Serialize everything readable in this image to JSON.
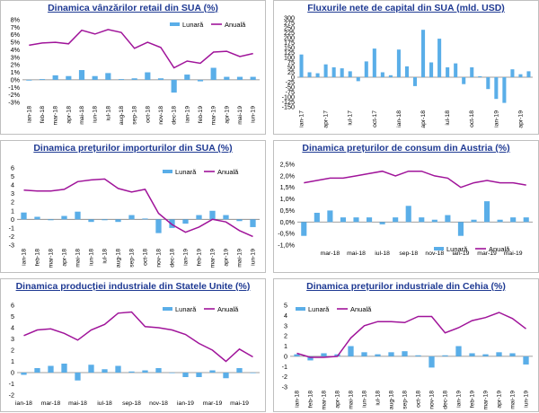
{
  "legend": {
    "monthly": "Lunară",
    "annual": "Anuală"
  },
  "colors": {
    "bar": "#5aaee8",
    "line": "#a0149a",
    "title": "#1f3a93"
  },
  "chart_data": [
    {
      "type": "bar",
      "title": "Dinamica vânzărilor retail din SUA (%)",
      "categories": [
        "ian-18",
        "feb-18",
        "mar-18",
        "apr-18",
        "mai-18",
        "iun-18",
        "iul-18",
        "aug-18",
        "sep-18",
        "oct-18",
        "nov-18",
        "dec-18",
        "ian-19",
        "feb-19",
        "mar-19",
        "apr-19",
        "mai-19",
        "iun-19"
      ],
      "tick_labels": [
        "ian-18",
        "feb-18",
        "mar-18",
        "apr-18",
        "mai-18",
        "iun-18",
        "iul-18",
        "aug-18",
        "sep-18",
        "oct-18",
        "nov-18",
        "dec-18",
        "ian-19",
        "feb-19",
        "mar-19",
        "apr-19",
        "mai-19",
        "iun-19"
      ],
      "ylim": [
        -3,
        8
      ],
      "yticks": [
        "-3%",
        "-2%",
        "-1%",
        "0%",
        "1%",
        "2%",
        "3%",
        "4%",
        "5%",
        "6%",
        "7%",
        "8%"
      ],
      "series": [
        {
          "name": "Lunară",
          "values": [
            -0.1,
            0.1,
            0.6,
            0.5,
            1.3,
            0.5,
            0.9,
            0.1,
            0.2,
            1.0,
            0.2,
            -1.7,
            0.7,
            -0.2,
            1.6,
            0.4,
            0.4,
            0.4
          ]
        },
        {
          "name": "Anuală",
          "values": [
            4.6,
            4.9,
            5.0,
            4.8,
            6.6,
            6.1,
            6.7,
            6.3,
            4.2,
            5.0,
            4.3,
            1.6,
            2.5,
            2.2,
            3.7,
            3.8,
            3.1,
            3.5
          ]
        }
      ]
    },
    {
      "type": "bar",
      "title": "Fluxurile nete de capital din SUA (mld. USD)",
      "categories": [
        "ian-17",
        "feb-17",
        "mar-17",
        "apr-17",
        "mai-17",
        "iun-17",
        "iul-17",
        "aug-17",
        "sep-17",
        "oct-17",
        "nov-17",
        "dec-17",
        "ian-18",
        "feb-18",
        "mar-18",
        "apr-18",
        "mai-18",
        "iun-18",
        "iul-18",
        "aug-18",
        "sep-18",
        "oct-18",
        "nov-18",
        "dec-18",
        "ian-19",
        "feb-19",
        "mar-19",
        "apr-19",
        "mai-19"
      ],
      "tick_labels": [
        "ian-17",
        "",
        "",
        "apr-17",
        "",
        "",
        "iul-17",
        "",
        "",
        "oct-17",
        "",
        "",
        "ian-18",
        "",
        "",
        "apr-18",
        "",
        "",
        "iul-18",
        "",
        "",
        "oct-18",
        "",
        "",
        "ian-19",
        "",
        "",
        "apr-19",
        ""
      ],
      "ylim": [
        -150,
        300
      ],
      "yticks": [
        "-150",
        "-125",
        "-100",
        "-75",
        "-50",
        "-25",
        "0",
        "25",
        "50",
        "75",
        "100",
        "125",
        "150",
        "175",
        "200",
        "225",
        "250",
        "275",
        "300"
      ],
      "series": [
        {
          "name": "Net",
          "values": [
            115,
            25,
            20,
            65,
            50,
            45,
            30,
            -20,
            80,
            145,
            25,
            10,
            140,
            55,
            -45,
            240,
            75,
            195,
            50,
            70,
            -35,
            50,
            5,
            -60,
            -110,
            -130,
            40,
            15,
            30
          ]
        }
      ]
    },
    {
      "type": "bar",
      "title": "Dinamica prețurilor importurilor din SUA (%)",
      "categories": [
        "ian-18",
        "feb-18",
        "mar-18",
        "apr-18",
        "mai-18",
        "iun-18",
        "iul-18",
        "aug-18",
        "sep-18",
        "oct-18",
        "nov-18",
        "dec-18",
        "ian-19",
        "feb-19",
        "mar-19",
        "apr-19",
        "mai-19",
        "iun-19"
      ],
      "tick_labels": [
        "ian-18",
        "feb-18",
        "mar-18",
        "apr-18",
        "mai-18",
        "iun-18",
        "iul-18",
        "aug-18",
        "sep-18",
        "oct-18",
        "nov-18",
        "dec-18",
        "ian-19",
        "feb-19",
        "mar-19",
        "apr-19",
        "mai-19",
        "iun-19"
      ],
      "ylim": [
        -3,
        6
      ],
      "yticks": [
        "-3",
        "-2",
        "-1",
        "0",
        "1",
        "2",
        "3",
        "4",
        "5",
        "6"
      ],
      "series": [
        {
          "name": "Lunară",
          "values": [
            0.8,
            0.3,
            -0.1,
            0.4,
            0.9,
            -0.3,
            -0.1,
            -0.3,
            0.5,
            0.1,
            -1.6,
            -1.0,
            -0.5,
            0.5,
            1.0,
            0.5,
            -0.2,
            -0.9
          ]
        },
        {
          "name": "Anuală",
          "values": [
            3.4,
            3.3,
            3.3,
            3.5,
            4.4,
            4.6,
            4.7,
            3.6,
            3.2,
            3.5,
            0.7,
            -0.6,
            -1.5,
            -0.9,
            0.0,
            -0.3,
            -1.3,
            -2.0
          ]
        }
      ]
    },
    {
      "type": "bar",
      "title": "Dinamica prețurilor de consum din Austria (%)",
      "categories": [
        "ian-18",
        "feb-18",
        "mar-18",
        "apr-18",
        "mai-18",
        "iun-18",
        "iul-18",
        "aug-18",
        "sep-18",
        "oct-18",
        "nov-18",
        "dec-18",
        "ian-19",
        "feb-19",
        "mar-19",
        "apr-19",
        "mai-19",
        "iun-19"
      ],
      "tick_labels": [
        "",
        "",
        "mar-18",
        "",
        "mai-18",
        "",
        "iul-18",
        "",
        "sep-18",
        "",
        "nov-18",
        "",
        "ian-19",
        "",
        "mar-19",
        "",
        "mai-19",
        ""
      ],
      "ylim": [
        -1,
        2.5
      ],
      "yticks": [
        "-1,0%",
        "-0,5%",
        "0,0%",
        "0,5%",
        "1,0%",
        "1,5%",
        "2,0%",
        "2,5%"
      ],
      "series": [
        {
          "name": "Lunară",
          "values": [
            -0.6,
            0.4,
            0.5,
            0.2,
            0.2,
            0.2,
            -0.1,
            0.2,
            0.7,
            0.2,
            0.1,
            0.3,
            -0.6,
            0.1,
            0.9,
            0.1,
            0.2,
            0.2
          ]
        },
        {
          "name": "Anuală",
          "values": [
            1.7,
            1.8,
            1.9,
            1.9,
            2.0,
            2.1,
            2.2,
            2.0,
            2.2,
            2.2,
            2.0,
            1.9,
            1.5,
            1.7,
            1.8,
            1.7,
            1.7,
            1.6
          ]
        }
      ]
    },
    {
      "type": "bar",
      "title": "Dinamica producției industriale din Statele Unite (%)",
      "categories": [
        "ian-18",
        "feb-18",
        "mar-18",
        "apr-18",
        "mai-18",
        "iun-18",
        "iul-18",
        "aug-18",
        "sep-18",
        "oct-18",
        "nov-18",
        "dec-18",
        "ian-19",
        "feb-19",
        "mar-19",
        "apr-19",
        "mai-19",
        "iun-19"
      ],
      "tick_labels": [
        "ian-18",
        "",
        "mar-18",
        "",
        "mai-18",
        "",
        "iul-18",
        "",
        "sep-18",
        "",
        "nov-18",
        "",
        "ian-19",
        "",
        "mar-19",
        "",
        "mai-19",
        ""
      ],
      "ylim": [
        -2,
        6
      ],
      "yticks": [
        "-2",
        "-1",
        "0",
        "1",
        "2",
        "3",
        "4",
        "5",
        "6"
      ],
      "series": [
        {
          "name": "Lunară",
          "values": [
            -0.2,
            0.4,
            0.6,
            0.8,
            -0.7,
            0.7,
            0.3,
            0.6,
            0.1,
            0.2,
            0.4,
            0.0,
            -0.4,
            -0.4,
            0.2,
            -0.5,
            0.4,
            0.0
          ]
        },
        {
          "name": "Anuală",
          "values": [
            3.3,
            3.8,
            3.9,
            3.5,
            2.9,
            3.8,
            4.3,
            5.3,
            5.4,
            4.1,
            4.0,
            3.8,
            3.4,
            2.6,
            2.0,
            1.0,
            2.1,
            1.4
          ]
        }
      ]
    },
    {
      "type": "bar",
      "title": "Dinamica prețurilor industriale din Cehia (%)",
      "categories": [
        "ian-18",
        "feb-18",
        "mar-18",
        "apr-18",
        "mai-18",
        "iun-18",
        "iul-18",
        "aug-18",
        "sep-18",
        "oct-18",
        "nov-18",
        "dec-18",
        "ian-19",
        "feb-19",
        "mar-19",
        "apr-19",
        "mai-19",
        "iun-19"
      ],
      "tick_labels": [
        "ian-18",
        "feb-18",
        "mar-18",
        "apr-18",
        "mai-18",
        "iun-18",
        "iul-18",
        "aug-18",
        "sep-18",
        "oct-18",
        "nov-18",
        "dec-18",
        "ian-19",
        "feb-19",
        "mar-19",
        "apr-19",
        "mai-19",
        "iun-19"
      ],
      "ylim": [
        -3,
        5
      ],
      "yticks": [
        "-3",
        "-2",
        "-1",
        "0",
        "1",
        "2",
        "3",
        "4",
        "5"
      ],
      "series": [
        {
          "name": "Lunară",
          "values": [
            0.2,
            -0.4,
            0.3,
            0.2,
            1.0,
            0.4,
            0.2,
            0.4,
            0.5,
            0.1,
            -1.1,
            0.1,
            1.0,
            0.3,
            0.2,
            0.4,
            0.3,
            -0.8
          ]
        },
        {
          "name": "Anuală",
          "values": [
            0.3,
            -0.1,
            -0.1,
            0.0,
            1.8,
            3.0,
            3.4,
            3.4,
            3.3,
            3.9,
            3.9,
            2.3,
            2.8,
            3.5,
            3.8,
            4.3,
            3.7,
            2.7
          ]
        }
      ]
    }
  ]
}
